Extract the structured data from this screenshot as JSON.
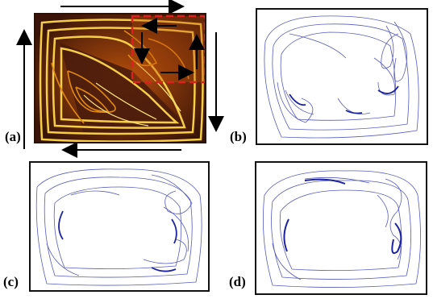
{
  "figure": {
    "panels": [
      {
        "id": "a",
        "label": "(a)",
        "kind": "photo"
      },
      {
        "id": "b",
        "label": "(b)",
        "kind": "simulation"
      },
      {
        "id": "c",
        "label": "(c)",
        "kind": "simulation"
      },
      {
        "id": "d",
        "label": "(d)",
        "kind": "simulation"
      }
    ]
  },
  "colors": {
    "photo_background": "#2a1208",
    "streak_bright": "#ffd84a",
    "streak_mid": "#e08a10",
    "dark_region": "#4a1c0c",
    "highlight_box": "#e02020",
    "arrow": "#000000",
    "simulation_line": "#3a3fb0",
    "frame": "#111111"
  }
}
